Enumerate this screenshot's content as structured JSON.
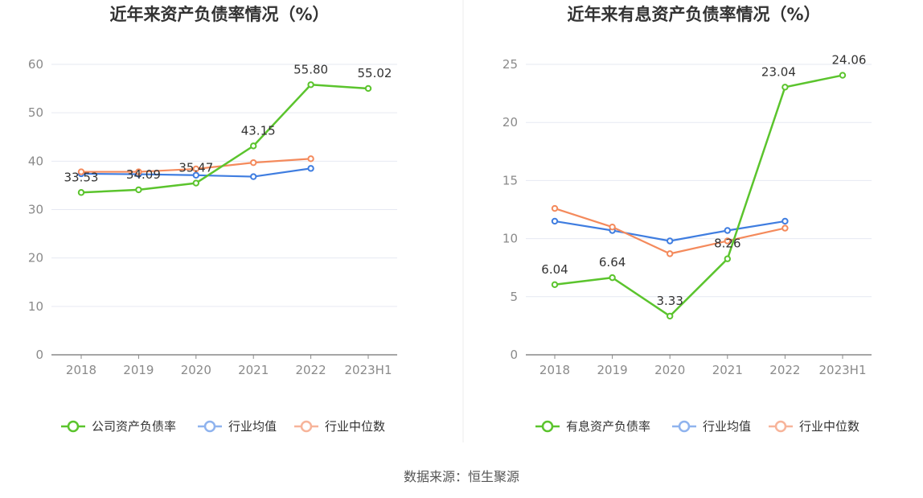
{
  "source": "数据来源：恒生聚源",
  "chart_data": [
    {
      "type": "line",
      "title": "近年来资产负债率情况（%）",
      "categories": [
        "2018",
        "2019",
        "2020",
        "2021",
        "2022",
        "2023H1"
      ],
      "ylim": [
        0,
        60
      ],
      "yticks": [
        0,
        10,
        20,
        30,
        40,
        50,
        60
      ],
      "grid": true,
      "legend_position": "bottom",
      "series": [
        {
          "name": "公司资产负债率",
          "color": "#5bc42d",
          "values": [
            33.53,
            34.09,
            35.47,
            43.15,
            55.8,
            55.02
          ],
          "labels": [
            "33.53",
            "34.09",
            "35.47",
            "43.15",
            "55.80",
            "55.02"
          ]
        },
        {
          "name": "行业均值",
          "color": "#3f7de0",
          "values": [
            37.4,
            37.3,
            37.1,
            36.8,
            38.5,
            null
          ]
        },
        {
          "name": "行业中位数",
          "color": "#f48a5c",
          "values": [
            37.8,
            37.8,
            38.4,
            39.7,
            40.5,
            null
          ]
        }
      ]
    },
    {
      "type": "line",
      "title": "近年来有息资产负债率情况（%）",
      "categories": [
        "2018",
        "2019",
        "2020",
        "2021",
        "2022",
        "2023H1"
      ],
      "ylim": [
        0,
        25
      ],
      "yticks": [
        0,
        5,
        10,
        15,
        20,
        25
      ],
      "grid": true,
      "legend_position": "bottom",
      "series": [
        {
          "name": "有息资产负债率",
          "color": "#5bc42d",
          "values": [
            6.04,
            6.64,
            3.33,
            8.26,
            23.04,
            24.06
          ],
          "labels": [
            "6.04",
            "6.64",
            "3.33",
            "8.26",
            "23.04",
            "24.06"
          ]
        },
        {
          "name": "行业均值",
          "color": "#3f7de0",
          "values": [
            11.5,
            10.7,
            9.8,
            10.7,
            11.5,
            null
          ]
        },
        {
          "name": "行业中位数",
          "color": "#f48a5c",
          "values": [
            12.6,
            11.0,
            8.7,
            9.8,
            10.9,
            null
          ]
        }
      ]
    }
  ]
}
